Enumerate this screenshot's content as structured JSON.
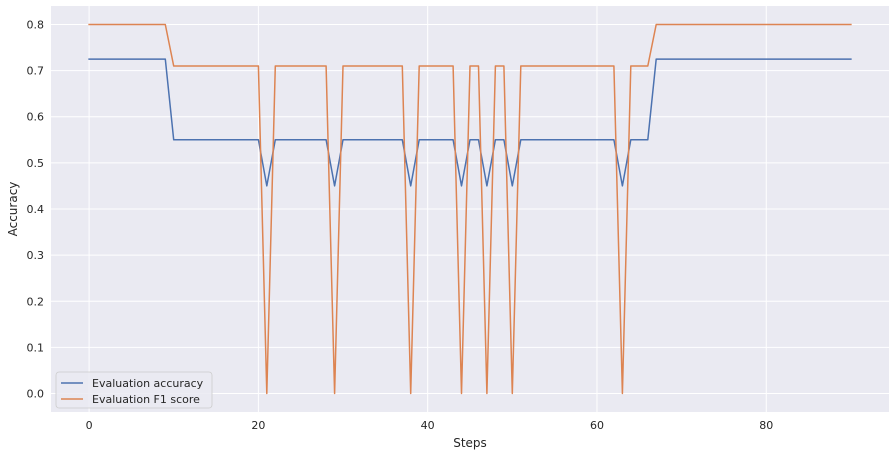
{
  "chart_data": {
    "type": "line",
    "title": "",
    "xlabel": "Steps",
    "ylabel": "Accuracy",
    "xlim": [
      -4.5,
      94.5
    ],
    "ylim": [
      -0.04,
      0.84
    ],
    "xticks": [
      0,
      20,
      40,
      60,
      80
    ],
    "yticks": [
      0.0,
      0.1,
      0.2,
      0.3,
      0.4,
      0.5,
      0.6,
      0.7,
      0.8
    ],
    "grid": true,
    "legend_position": "lower-left",
    "series": [
      {
        "name": "Evaluation accuracy",
        "color": "#4c72b0",
        "x": [
          0,
          9,
          10,
          20,
          21,
          22,
          28,
          29,
          30,
          37,
          38,
          39,
          43,
          44,
          45,
          46,
          47,
          48,
          49,
          50,
          51,
          62,
          63,
          64,
          66,
          67,
          90
        ],
        "y": [
          0.725,
          0.725,
          0.55,
          0.55,
          0.45,
          0.55,
          0.55,
          0.45,
          0.55,
          0.55,
          0.45,
          0.55,
          0.55,
          0.45,
          0.55,
          0.55,
          0.45,
          0.55,
          0.55,
          0.45,
          0.55,
          0.55,
          0.45,
          0.55,
          0.55,
          0.725,
          0.725
        ]
      },
      {
        "name": "Evaluation F1 score",
        "color": "#dd8452",
        "x": [
          0,
          9,
          10,
          20,
          21,
          22,
          28,
          29,
          30,
          37,
          38,
          39,
          43,
          44,
          45,
          46,
          47,
          48,
          49,
          50,
          51,
          62,
          63,
          64,
          66,
          67,
          90
        ],
        "y": [
          0.8,
          0.8,
          0.71,
          0.71,
          0.0,
          0.71,
          0.71,
          0.0,
          0.71,
          0.71,
          0.0,
          0.71,
          0.71,
          0.0,
          0.71,
          0.71,
          0.0,
          0.71,
          0.71,
          0.0,
          0.71,
          0.71,
          0.0,
          0.71,
          0.71,
          0.8,
          0.8
        ]
      }
    ]
  }
}
